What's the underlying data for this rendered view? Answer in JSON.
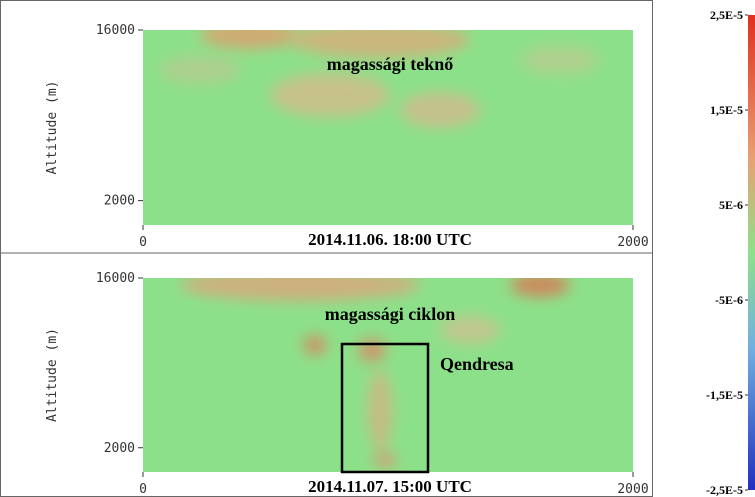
{
  "chart_data": [
    {
      "type": "heatmap",
      "title": "2014.11.06. 18:00 UTC",
      "y_label": "Altitude (m)",
      "annotation": "magassági teknő",
      "xlim": [
        0,
        2000
      ],
      "xticks": [
        0,
        2000
      ],
      "ylim": [
        0,
        16000
      ],
      "yticks": [
        2000,
        16000
      ]
    },
    {
      "type": "heatmap",
      "title": "2014.11.07. 15:00 UTC",
      "y_label": "Altitude (m)",
      "annotation": "magassági ciklon",
      "box_label": "Qendresa",
      "xlim": [
        0,
        2000
      ],
      "xticks": [
        0,
        2000
      ],
      "ylim": [
        0,
        16000
      ],
      "yticks": [
        2000,
        16000
      ]
    }
  ],
  "colorbar": {
    "lim": [
      -2.5e-05,
      2.5e-05
    ],
    "ticks": [
      {
        "value": 2.5e-05,
        "label": "2,5E-5"
      },
      {
        "value": 1.5e-05,
        "label": "1,5E-5"
      },
      {
        "value": 5e-06,
        "label": "5E-6"
      },
      {
        "value": -5e-06,
        "label": "-5E-6"
      },
      {
        "value": -1.5e-05,
        "label": "-1,5E-5"
      },
      {
        "value": -2.5e-05,
        "label": "-2,5E-5"
      }
    ]
  }
}
